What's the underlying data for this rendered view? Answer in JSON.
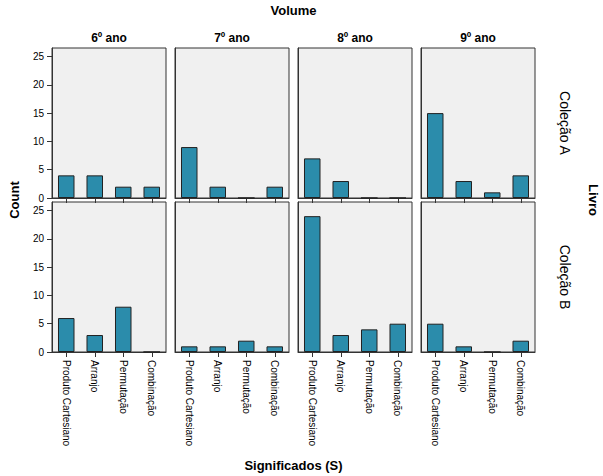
{
  "chart_data": {
    "type": "bar",
    "title": "Volume",
    "x_label": "Significados (S)",
    "y_label": "Count",
    "row_axis_label": "Livro",
    "columns": [
      "6º ano",
      "7º ano",
      "8º ano",
      "9º ano"
    ],
    "rows": [
      "Coleção A",
      "Coleção B"
    ],
    "categories": [
      "Produto Cartesiano",
      "Arranjo",
      "Permutação",
      "Combinação"
    ],
    "values": [
      [
        [
          4,
          4,
          2,
          2
        ],
        [
          9,
          2,
          0,
          2
        ],
        [
          7,
          3,
          0,
          0
        ],
        [
          15,
          3,
          1,
          4
        ]
      ],
      [
        [
          6,
          3,
          8,
          0
        ],
        [
          1,
          1,
          2,
          1
        ],
        [
          24,
          3,
          4,
          5
        ],
        [
          5,
          1,
          0,
          2
        ]
      ]
    ],
    "color": "#2b8cab",
    "ylim": [
      0,
      26.5
    ],
    "yticks": [
      0,
      5,
      10,
      15,
      20,
      25
    ],
    "grid": false
  }
}
